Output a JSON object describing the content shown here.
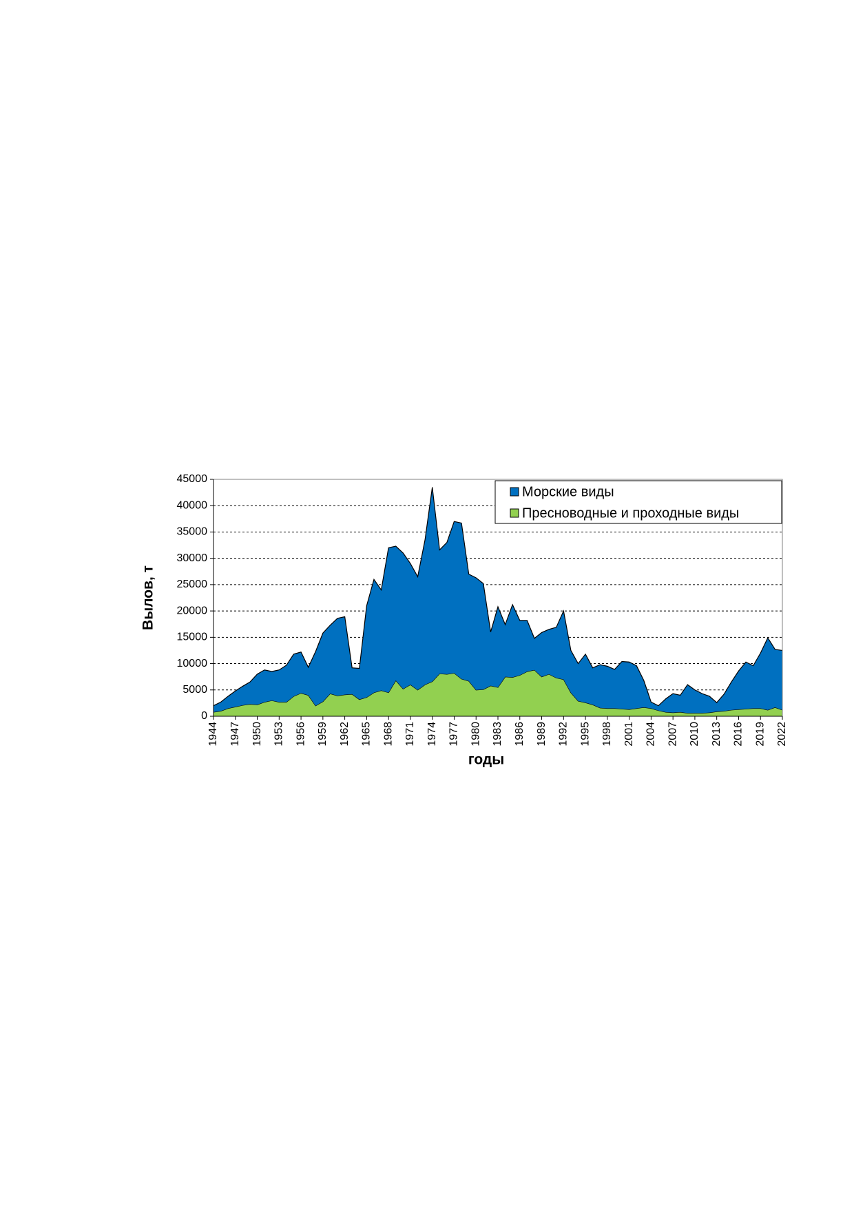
{
  "chart_data": {
    "type": "stacked-area",
    "x_label": "годы",
    "y_label": "Вылов, т",
    "x": [
      1944,
      1945,
      1946,
      1947,
      1948,
      1949,
      1950,
      1951,
      1952,
      1953,
      1954,
      1955,
      1956,
      1957,
      1958,
      1959,
      1960,
      1961,
      1962,
      1963,
      1964,
      1965,
      1966,
      1967,
      1968,
      1969,
      1970,
      1971,
      1972,
      1973,
      1974,
      1975,
      1976,
      1977,
      1978,
      1979,
      1980,
      1981,
      1982,
      1983,
      1984,
      1985,
      1986,
      1987,
      1988,
      1989,
      1990,
      1991,
      1992,
      1993,
      1994,
      1995,
      1996,
      1997,
      1998,
      1999,
      2000,
      2001,
      2002,
      2003,
      2004,
      2005,
      2006,
      2007,
      2008,
      2009,
      2010,
      2011,
      2012,
      2013,
      2014,
      2015,
      2016,
      2017,
      2018,
      2019,
      2020,
      2021,
      2022
    ],
    "series": [
      {
        "name": "Морские виды",
        "color": "#0070c0",
        "values": [
          1200,
          1700,
          2300,
          3000,
          3600,
          4200,
          5800,
          6100,
          5500,
          6100,
          7000,
          8000,
          7800,
          5300,
          10300,
          13000,
          13000,
          14700,
          14800,
          5000,
          5900,
          17400,
          21500,
          19100,
          27500,
          25500,
          25800,
          23000,
          21500,
          27500,
          36900,
          23500,
          25000,
          28800,
          29600,
          20300,
          21300,
          20100,
          10200,
          15300,
          9900,
          13800,
          10400,
          9700,
          6000,
          8400,
          8500,
          9600,
          13000,
          8000,
          7100,
          9200,
          7000,
          8200,
          8000,
          7400,
          9000,
          9000,
          8100,
          5100,
          1200,
          900,
          2500,
          3600,
          3200,
          5400,
          4400,
          3700,
          3100,
          1700,
          3200,
          5300,
          7300,
          8900,
          8100,
          10500,
          13700,
          11000,
          11300
        ]
      },
      {
        "name": "Пресноводные и проходные виды",
        "color": "#92d050",
        "values": [
          800,
          1000,
          1500,
          1800,
          2100,
          2300,
          2200,
          2700,
          3000,
          2700,
          2700,
          3800,
          4400,
          4000,
          2000,
          2800,
          4300,
          3900,
          4100,
          4200,
          3200,
          3600,
          4500,
          4900,
          4500,
          6800,
          5200,
          6000,
          5000,
          6000,
          6600,
          8100,
          8000,
          8200,
          7100,
          6700,
          5000,
          5100,
          5800,
          5500,
          7500,
          7400,
          7800,
          8500,
          8800,
          7500,
          8000,
          7300,
          7000,
          4500,
          2900,
          2600,
          2200,
          1600,
          1500,
          1500,
          1400,
          1300,
          1500,
          1700,
          1500,
          1100,
          800,
          700,
          800,
          600,
          600,
          600,
          700,
          900,
          1000,
          1200,
          1300,
          1400,
          1500,
          1500,
          1200,
          1700,
          1200
        ]
      }
    ],
    "xlim": [
      1944,
      2022
    ],
    "xticks": [
      1944,
      1947,
      1950,
      1953,
      1956,
      1959,
      1962,
      1965,
      1968,
      1971,
      1974,
      1977,
      1980,
      1983,
      1986,
      1989,
      1992,
      1995,
      1998,
      2001,
      2004,
      2007,
      2010,
      2013,
      2016,
      2019,
      2022
    ],
    "ylim": [
      0,
      45000
    ],
    "yticks": [
      0,
      5000,
      10000,
      15000,
      20000,
      25000,
      30000,
      35000,
      40000,
      45000
    ],
    "grid": true,
    "legend": "top-right"
  }
}
